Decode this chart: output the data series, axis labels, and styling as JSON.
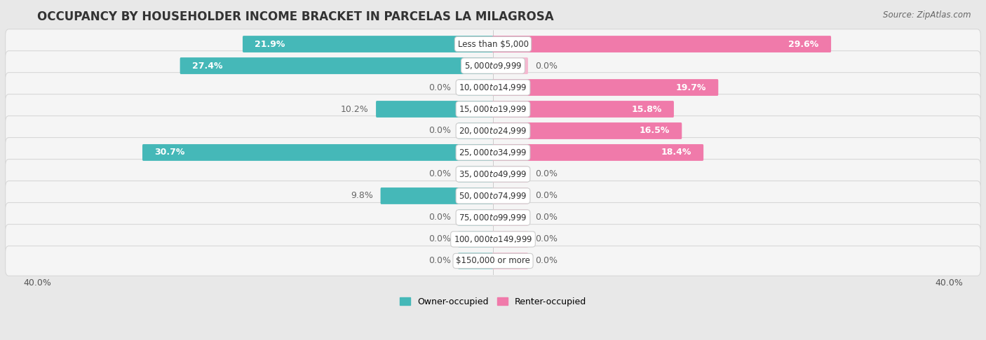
{
  "title": "OCCUPANCY BY HOUSEHOLDER INCOME BRACKET IN PARCELAS LA MILAGROSA",
  "source": "Source: ZipAtlas.com",
  "categories": [
    "Less than $5,000",
    "$5,000 to $9,999",
    "$10,000 to $14,999",
    "$15,000 to $19,999",
    "$20,000 to $24,999",
    "$25,000 to $34,999",
    "$35,000 to $49,999",
    "$50,000 to $74,999",
    "$75,000 to $99,999",
    "$100,000 to $149,999",
    "$150,000 or more"
  ],
  "owner_values": [
    21.9,
    27.4,
    0.0,
    10.2,
    0.0,
    30.7,
    0.0,
    9.8,
    0.0,
    0.0,
    0.0
  ],
  "renter_values": [
    29.6,
    0.0,
    19.7,
    15.8,
    16.5,
    18.4,
    0.0,
    0.0,
    0.0,
    0.0,
    0.0
  ],
  "owner_color": "#45b8b8",
  "owner_color_light": "#8dd4d4",
  "renter_color": "#f07aaa",
  "renter_color_light": "#f5b8d0",
  "background_color": "#e8e8e8",
  "row_bg_color": "#f5f5f5",
  "row_edge_color": "#d8d8d8",
  "axis_limit": 40.0,
  "bar_height": 0.62,
  "stub_size": 3.0,
  "title_fontsize": 12,
  "label_fontsize": 9,
  "category_fontsize": 8.5,
  "legend_fontsize": 9,
  "source_fontsize": 8.5,
  "label_color_outside": "#666666",
  "label_color_inside": "#ffffff"
}
